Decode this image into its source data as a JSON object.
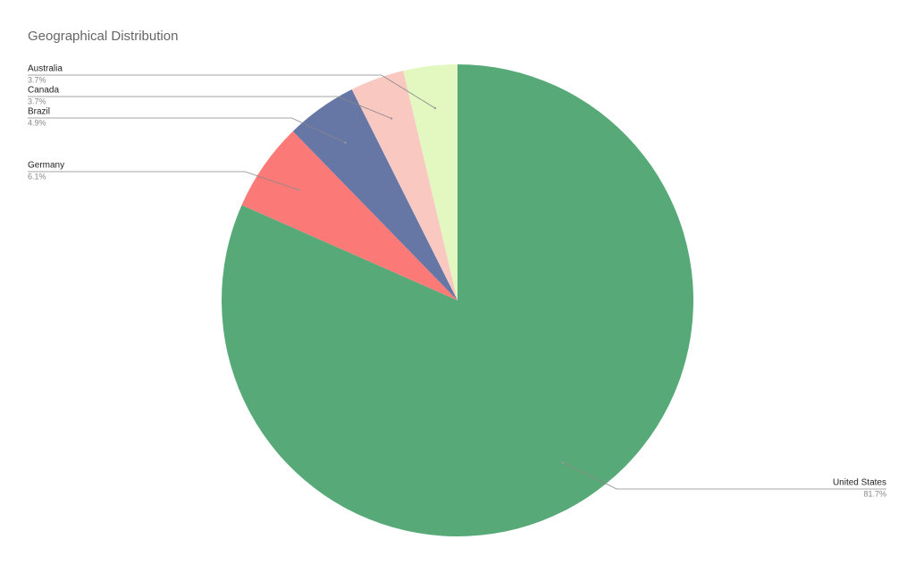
{
  "chart_data": {
    "type": "pie",
    "title": "Geographical Distribution",
    "categories": [
      "United States",
      "Germany",
      "Brazil",
      "Canada",
      "Australia"
    ],
    "values": [
      81.7,
      6.1,
      4.9,
      3.7,
      3.7
    ],
    "value_labels": [
      "81.7%",
      "6.1%",
      "4.9%",
      "3.7%",
      "3.7%"
    ],
    "colors": [
      "#57aa78",
      "#fb7a78",
      "#6677a6",
      "#f9c9c1",
      "#e3f7c0"
    ]
  }
}
